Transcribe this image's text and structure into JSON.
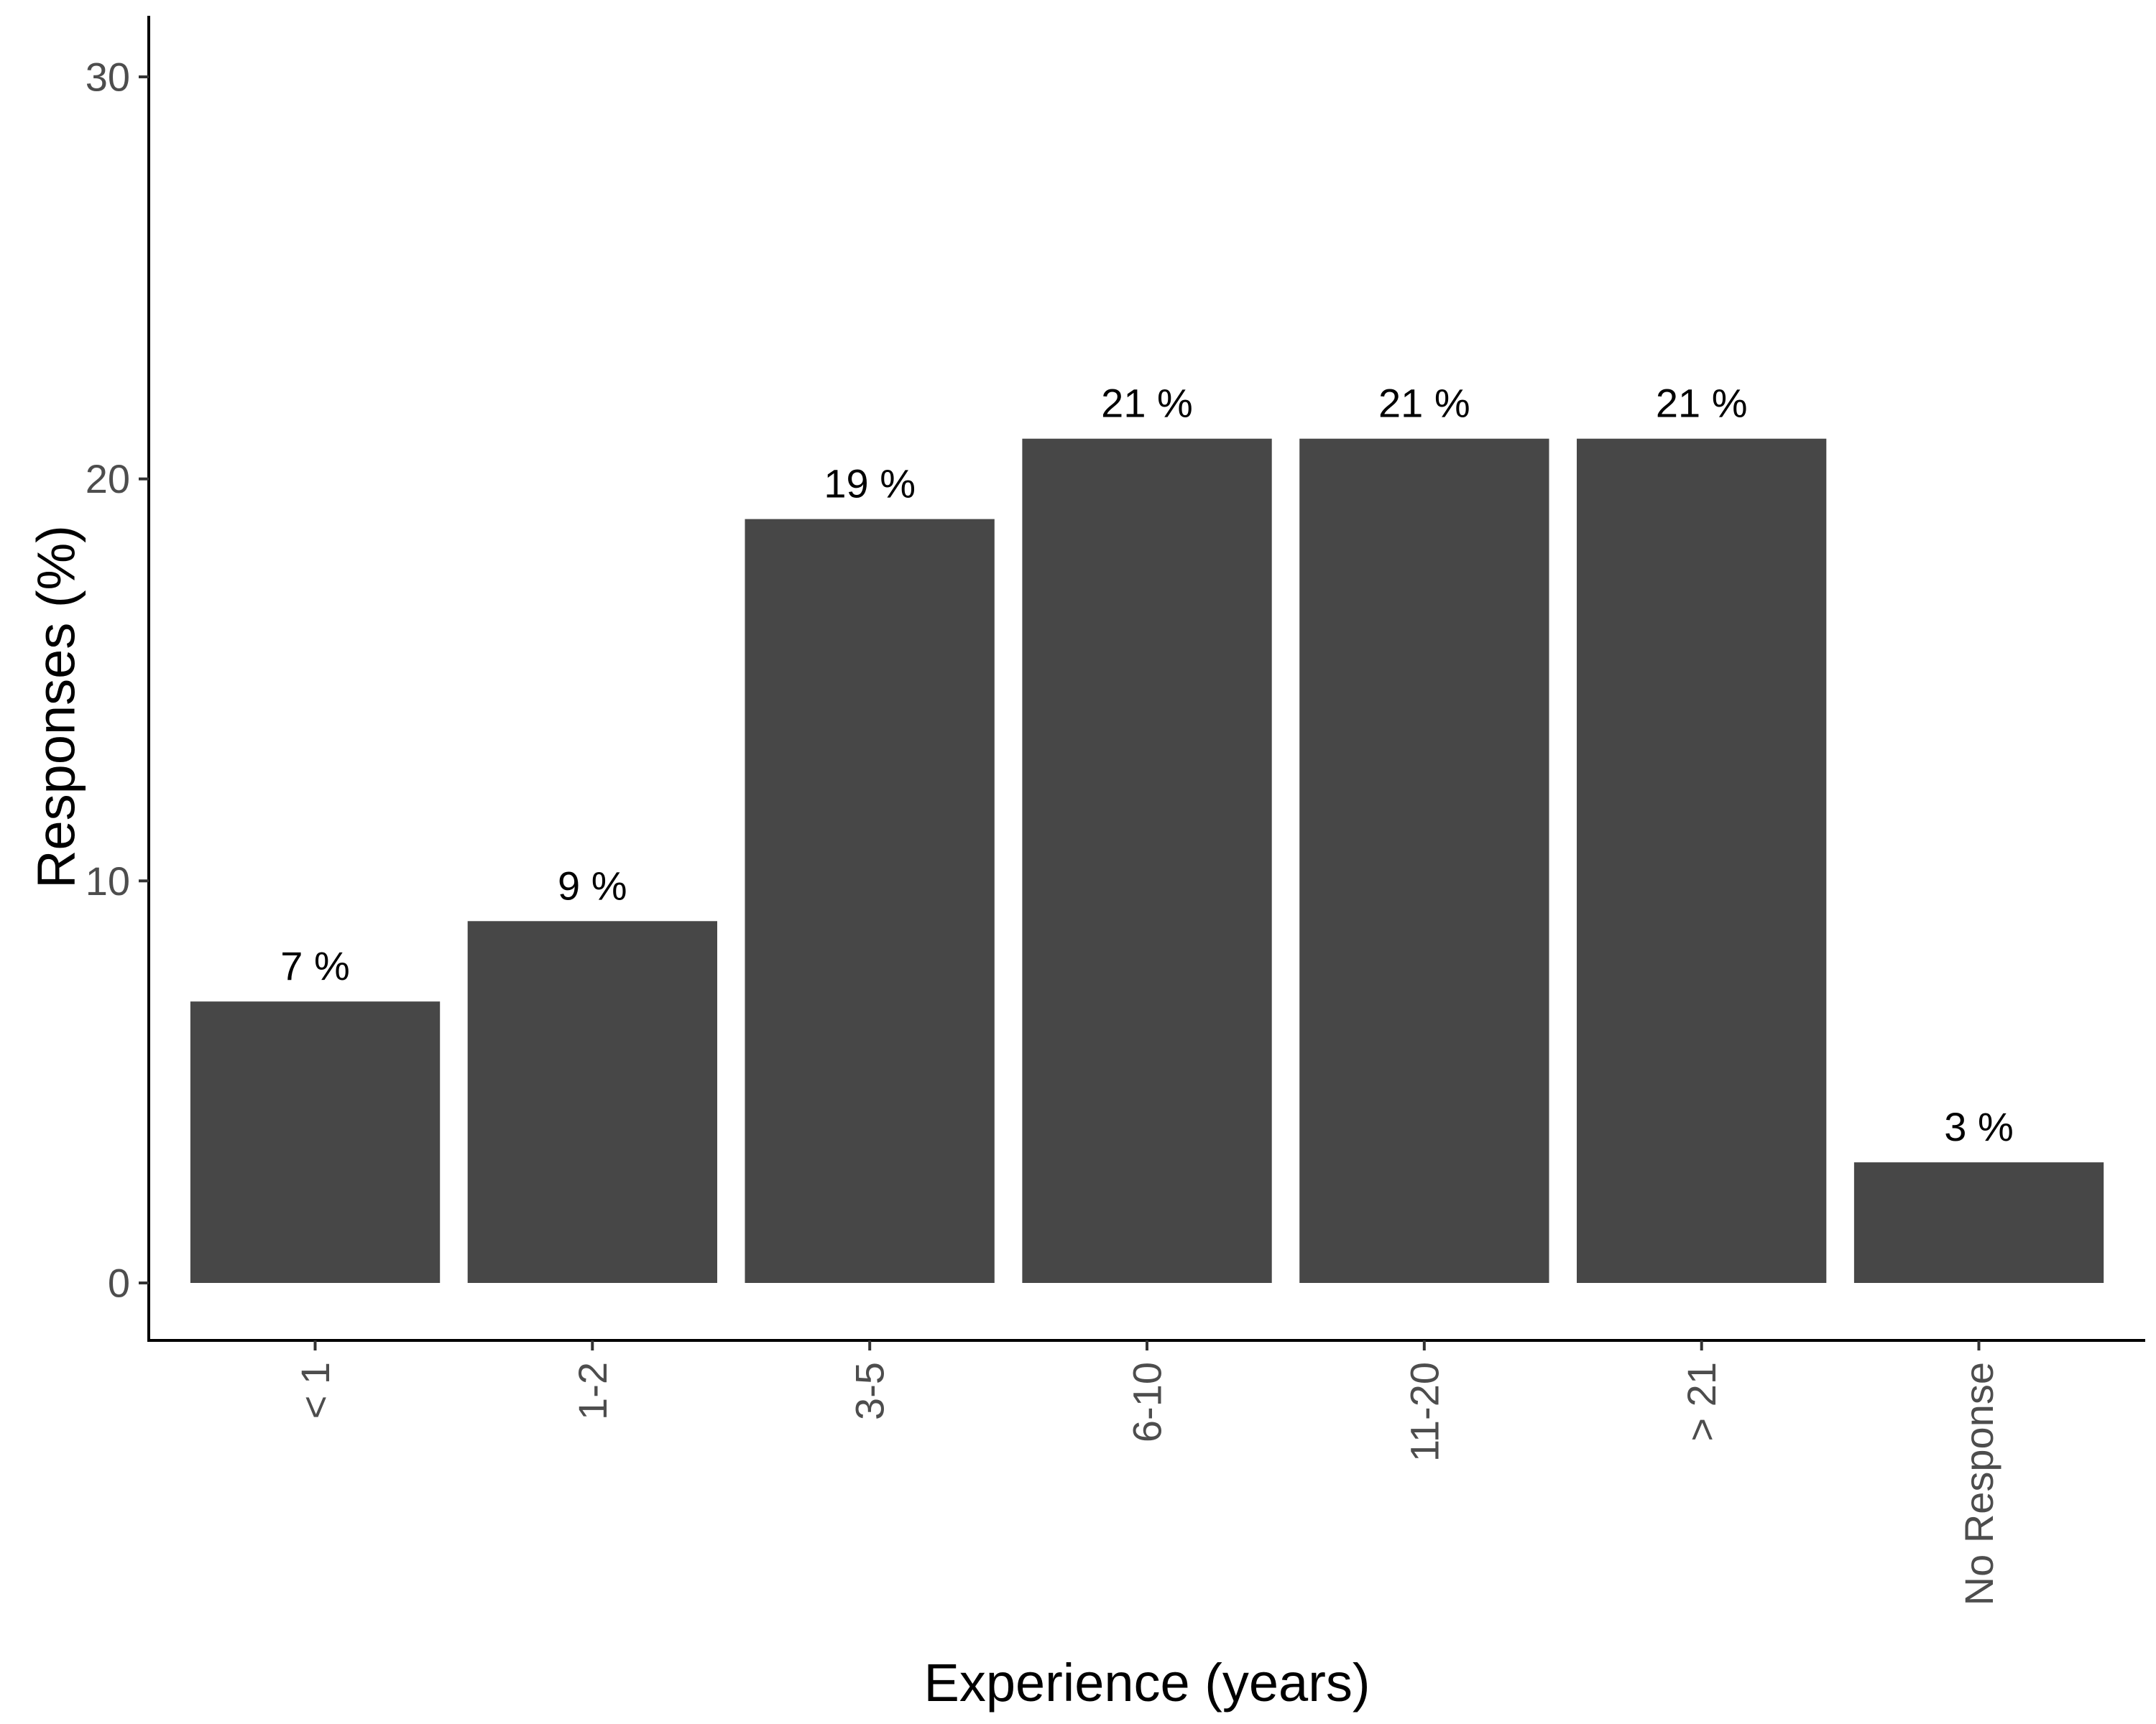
{
  "chart_data": {
    "type": "bar",
    "title": "",
    "xlabel": "Experience (years)",
    "ylabel": "Responses (%)",
    "categories": [
      "< 1",
      "1-2",
      "3-5",
      "6-10",
      "11-20",
      "> 21",
      "No Response"
    ],
    "values": [
      7,
      9,
      19,
      21,
      21,
      21,
      3
    ],
    "data_labels": [
      "7 %",
      "9 %",
      "19 %",
      "21 %",
      "21 %",
      "21 %",
      "3 %"
    ],
    "ylim": [
      -1.4,
      31.5
    ],
    "yticks": [
      0,
      10,
      20,
      30
    ],
    "ytick_labels": [
      "0",
      "10",
      "20",
      "30"
    ],
    "grid": false,
    "legend": "none",
    "bar_color": "#474747",
    "x_tick_rotation": -90
  }
}
